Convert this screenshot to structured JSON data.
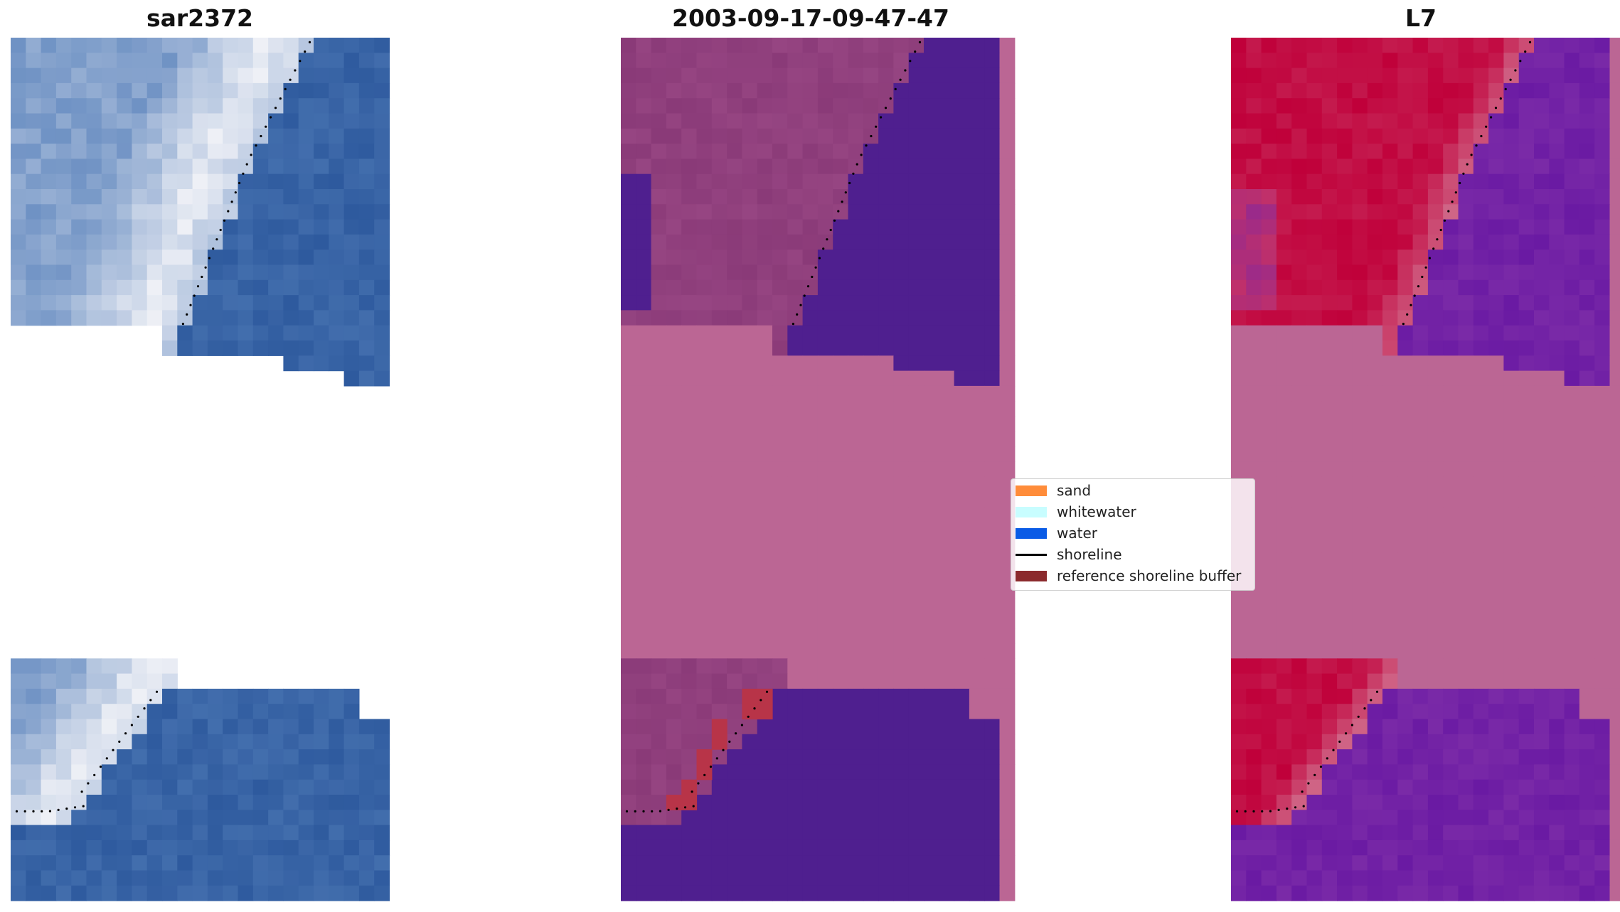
{
  "panels": [
    {
      "title": "sar2372"
    },
    {
      "title": "2003-09-17-09-47-47"
    },
    {
      "title": "L7"
    }
  ],
  "legend": {
    "items": [
      {
        "label": "sand",
        "type": "patch",
        "color": "#ff8c3a"
      },
      {
        "label": "whitewater",
        "type": "patch",
        "color": "#c8fdff"
      },
      {
        "label": "water",
        "type": "patch",
        "color": "#0a5be6"
      },
      {
        "label": "shoreline",
        "type": "line",
        "color": "#000000"
      },
      {
        "label": "reference shoreline buffer",
        "type": "patch",
        "color": "#8b2a2d"
      }
    ]
  },
  "colors": {
    "rgb_water": "#2e5a9e",
    "rgb_bright": "#eef0f6",
    "classified_water": "#4f1f8f",
    "classified_land": "#8a3a78",
    "classified_nodata": "#bb6694",
    "buffer_overlay": "#b83448",
    "mndwi_land": "#c0003a",
    "mndwi_water": "#6a1aa3",
    "shoreline_dot": "#000000"
  }
}
